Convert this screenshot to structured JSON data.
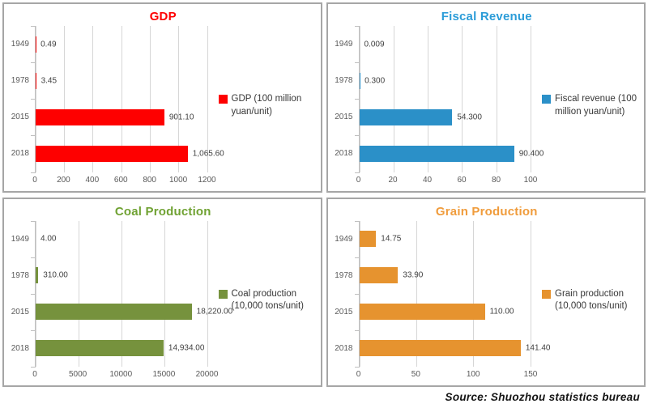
{
  "source_note": "Source: Shuozhou statistics bureau",
  "chart_data": [
    {
      "type": "bar",
      "orientation": "horizontal",
      "title": "GDP",
      "title_color": "#fe0000",
      "bar_color": "#fe0000",
      "legend": "GDP (100 million yuan/unit)",
      "legend_position": "right",
      "categories": [
        "1949",
        "1978",
        "2015",
        "2018"
      ],
      "values": [
        0.49,
        3.45,
        901.1,
        1065.6
      ],
      "value_labels": [
        "0.49",
        "3.45",
        "901.10",
        "1,065.60"
      ],
      "xlim": [
        0,
        1200
      ],
      "xticks": [
        0,
        200,
        400,
        600,
        800,
        1000,
        1200
      ],
      "xtick_labels": [
        "0",
        "200",
        "400",
        "600",
        "800",
        "1000",
        "1200"
      ],
      "grid": true
    },
    {
      "type": "bar",
      "orientation": "horizontal",
      "title": "Fiscal Revenue",
      "title_color": "#2b9cd8",
      "bar_color": "#2b90c8",
      "legend": "Fiscal revenue (100 million yuan/unit)",
      "legend_position": "right",
      "categories": [
        "1949",
        "1978",
        "2015",
        "2018"
      ],
      "values": [
        0.009,
        0.3,
        54.3,
        90.4
      ],
      "value_labels": [
        "0.009",
        "0.300",
        "54.300",
        "90.400"
      ],
      "xlim": [
        0,
        100
      ],
      "xticks": [
        0,
        20,
        40,
        60,
        80,
        100
      ],
      "xtick_labels": [
        "0",
        "20",
        "40",
        "60",
        "80",
        "100"
      ],
      "grid": true
    },
    {
      "type": "bar",
      "orientation": "horizontal",
      "title": "Coal Production",
      "title_color": "#70a233",
      "bar_color": "#76923d",
      "legend": "Coal production (10,000 tons/unit)",
      "legend_position": "right",
      "categories": [
        "1949",
        "1978",
        "2015",
        "2018"
      ],
      "values": [
        4.0,
        310.0,
        18220.0,
        14934.0
      ],
      "value_labels": [
        "4.00",
        "310.00",
        "18,220.00",
        "14,934.00"
      ],
      "xlim": [
        0,
        20000
      ],
      "xticks": [
        0,
        5000,
        10000,
        15000,
        20000
      ],
      "xtick_labels": [
        "0",
        "5000",
        "10000",
        "15000",
        "20000"
      ],
      "grid": true
    },
    {
      "type": "bar",
      "orientation": "horizontal",
      "title": "Grain Production",
      "title_color": "#f09c3c",
      "bar_color": "#e6932f",
      "legend": "Grain production (10,000 tons/unit)",
      "legend_position": "right",
      "categories": [
        "1949",
        "1978",
        "2015",
        "2018"
      ],
      "values": [
        14.75,
        33.9,
        110.0,
        141.4
      ],
      "value_labels": [
        "14.75",
        "33.90",
        "110.00",
        "141.40"
      ],
      "xlim": [
        0,
        150
      ],
      "xticks": [
        0,
        50,
        100,
        150
      ],
      "xtick_labels": [
        "0",
        "50",
        "100",
        "150"
      ],
      "grid": true
    }
  ]
}
